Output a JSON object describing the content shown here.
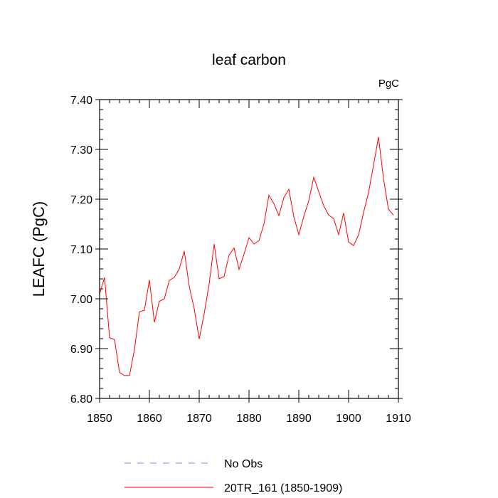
{
  "chart_data": {
    "type": "line",
    "title": "leaf carbon",
    "units": "PgC",
    "ylabel": "LEAFC  (PgC)",
    "xlabel": "",
    "xlim": [
      1850,
      1910
    ],
    "ylim": [
      6.8,
      7.4
    ],
    "x_ticks": [
      1850,
      1860,
      1870,
      1880,
      1890,
      1900,
      1910
    ],
    "x_tick_labels": [
      "1850",
      "1860",
      "1870",
      "1880",
      "1890",
      "1900",
      "1910"
    ],
    "y_ticks": [
      6.8,
      6.9,
      7.0,
      7.1,
      7.2,
      7.3,
      7.4
    ],
    "y_tick_labels": [
      "6.80",
      "6.90",
      "7.00",
      "7.10",
      "7.20",
      "7.30",
      "7.40"
    ],
    "legend_position": "bottom",
    "series": [
      {
        "name": "20TR_161 (1850-1909)",
        "color": "#ff0000",
        "style": "solid",
        "x": [
          1850,
          1851,
          1852,
          1853,
          1854,
          1855,
          1856,
          1857,
          1858,
          1859,
          1860,
          1861,
          1862,
          1863,
          1864,
          1865,
          1866,
          1867,
          1868,
          1869,
          1870,
          1871,
          1872,
          1873,
          1874,
          1875,
          1876,
          1877,
          1878,
          1879,
          1880,
          1881,
          1882,
          1883,
          1884,
          1885,
          1886,
          1887,
          1888,
          1889,
          1890,
          1891,
          1892,
          1893,
          1894,
          1895,
          1896,
          1897,
          1898,
          1899,
          1900,
          1901,
          1902,
          1903,
          1904,
          1905,
          1906,
          1907,
          1908,
          1909
        ],
        "values": [
          7.01,
          7.043,
          6.922,
          6.918,
          6.852,
          6.846,
          6.846,
          6.898,
          6.974,
          6.977,
          7.038,
          6.953,
          6.995,
          7.0,
          7.037,
          7.043,
          7.06,
          7.096,
          7.025,
          6.98,
          6.919,
          6.97,
          7.03,
          7.11,
          7.04,
          7.045,
          7.088,
          7.102,
          7.059,
          7.09,
          7.123,
          7.11,
          7.117,
          7.15,
          7.208,
          7.191,
          7.167,
          7.203,
          7.22,
          7.165,
          7.129,
          7.165,
          7.197,
          7.244,
          7.215,
          7.187,
          7.168,
          7.161,
          7.129,
          7.172,
          7.114,
          7.107,
          7.128,
          7.173,
          7.213,
          7.268,
          7.325,
          7.242,
          7.18,
          7.168
        ]
      },
      {
        "name": "No Obs",
        "color": "#8080ff",
        "style": "dashed",
        "x": [],
        "values": []
      }
    ]
  }
}
